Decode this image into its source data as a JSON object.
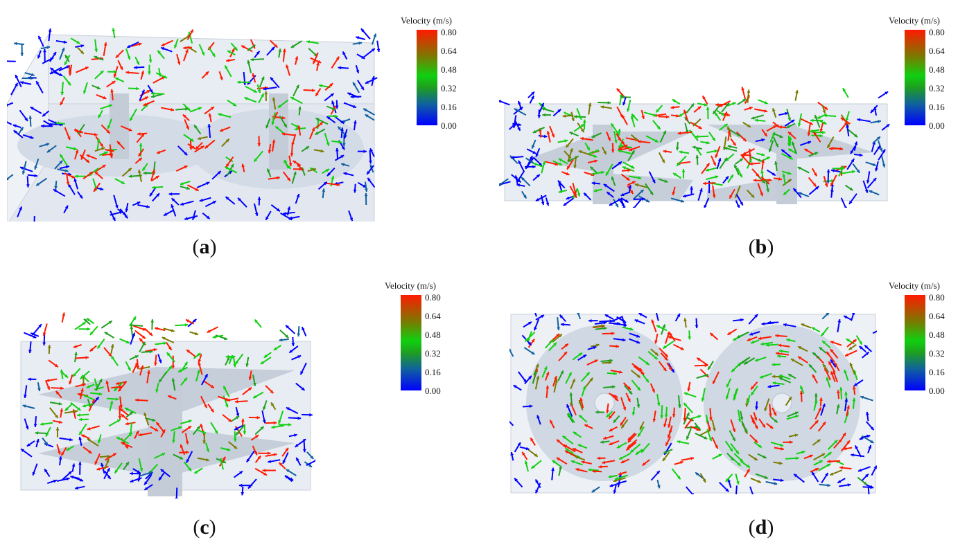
{
  "legend": {
    "title": "Velocity (m/s)",
    "ticks": [
      "0.80",
      "0.64",
      "0.48",
      "0.32",
      "0.16",
      "0.00"
    ],
    "colors": [
      "#0000ff",
      "#1060a0",
      "#1ea01e",
      "#10d010",
      "#7a7a00",
      "#ff1a00"
    ]
  },
  "panels": [
    {
      "id": "a",
      "letter": "a"
    },
    {
      "id": "b",
      "letter": "b"
    },
    {
      "id": "c",
      "letter": "c"
    },
    {
      "id": "d",
      "letter": "d"
    }
  ]
}
